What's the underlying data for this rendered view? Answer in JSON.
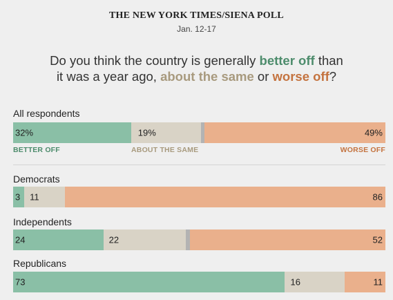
{
  "header": {
    "source": "THE NEW YORK TIMES/SIENA POLL",
    "dates": "Jan. 12-17"
  },
  "question": {
    "part1": "Do you think the country is generally ",
    "better": "better off",
    "part2": " than",
    "part3": "it was a year ago, ",
    "same": "about the same",
    "part4": " or ",
    "worse": "worse off",
    "part5": "?"
  },
  "colors": {
    "better": "#8abfa6",
    "same": "#d9d3c6",
    "unsure": "#b3b3b3",
    "worse": "#eab08c",
    "better_text": "#4d8c6c",
    "same_text": "#a89a7e",
    "worse_text": "#c4733f"
  },
  "legend": {
    "better": "BETTER OFF",
    "same": "ABOUT THE SAME",
    "worse": "WORSE OFF"
  },
  "chart_data": {
    "type": "bar",
    "orientation": "horizontal-stacked",
    "categories": [
      "All respondents",
      "Democrats",
      "Independents",
      "Republicans"
    ],
    "series": [
      {
        "name": "BETTER OFF",
        "values": [
          32,
          3,
          24,
          73
        ]
      },
      {
        "name": "ABOUT THE SAME",
        "values": [
          19,
          11,
          22,
          16
        ]
      },
      {
        "name": "unlabeled remainder",
        "values": [
          1,
          0,
          1,
          0
        ]
      },
      {
        "name": "WORSE OFF",
        "values": [
          49,
          86,
          52,
          11
        ]
      }
    ],
    "labels": [
      [
        "32%",
        "19%",
        "",
        "49%"
      ],
      [
        "3",
        "11",
        "",
        "86"
      ],
      [
        "24",
        "22",
        "",
        "52"
      ],
      [
        "73",
        "16",
        "",
        "11"
      ]
    ],
    "xlim": [
      0,
      100
    ]
  }
}
